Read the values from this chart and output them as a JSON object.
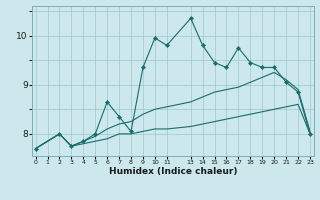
{
  "xlabel": "Humidex (Indice chaleur)",
  "bg_color": "#cce8ec",
  "grid_color": "#9ec8cc",
  "line_color": "#1a6b6b",
  "x_ticks": [
    0,
    1,
    2,
    3,
    4,
    5,
    6,
    7,
    8,
    9,
    10,
    11,
    13,
    14,
    15,
    16,
    17,
    18,
    19,
    20,
    21,
    22,
    23
  ],
  "ylim": [
    7.55,
    10.6
  ],
  "xlim": [
    -0.3,
    23.3
  ],
  "yticks": [
    8,
    9,
    10
  ],
  "series": [
    {
      "x": [
        0,
        2,
        3,
        4,
        5,
        6,
        7,
        8,
        9,
        10,
        11,
        13,
        14,
        15,
        16,
        17,
        18,
        19,
        20,
        21,
        22,
        23
      ],
      "y": [
        7.7,
        8.0,
        7.75,
        7.8,
        7.85,
        7.9,
        8.0,
        8.0,
        8.05,
        8.1,
        8.1,
        8.15,
        8.2,
        8.25,
        8.3,
        8.35,
        8.4,
        8.45,
        8.5,
        8.55,
        8.6,
        8.0
      ],
      "marker": false,
      "lw": 0.8
    },
    {
      "x": [
        0,
        2,
        3,
        4,
        5,
        6,
        7,
        8,
        9,
        10,
        11,
        13,
        14,
        15,
        16,
        17,
        18,
        19,
        20,
        21,
        22,
        23
      ],
      "y": [
        7.7,
        8.0,
        7.75,
        7.85,
        7.95,
        8.1,
        8.2,
        8.25,
        8.4,
        8.5,
        8.55,
        8.65,
        8.75,
        8.85,
        8.9,
        8.95,
        9.05,
        9.15,
        9.25,
        9.1,
        8.9,
        8.05
      ],
      "marker": false,
      "lw": 0.8
    },
    {
      "x": [
        0,
        2,
        3,
        4,
        5,
        6,
        7,
        8,
        9,
        10,
        11,
        13,
        14,
        15,
        16,
        17,
        18,
        19,
        20,
        21,
        22,
        23
      ],
      "y": [
        7.7,
        8.0,
        7.75,
        7.85,
        8.0,
        8.65,
        8.35,
        8.05,
        9.35,
        9.95,
        9.8,
        10.35,
        9.8,
        9.45,
        9.35,
        9.75,
        9.45,
        9.35,
        9.35,
        9.05,
        8.85,
        8.0
      ],
      "marker": true,
      "lw": 0.8
    }
  ]
}
